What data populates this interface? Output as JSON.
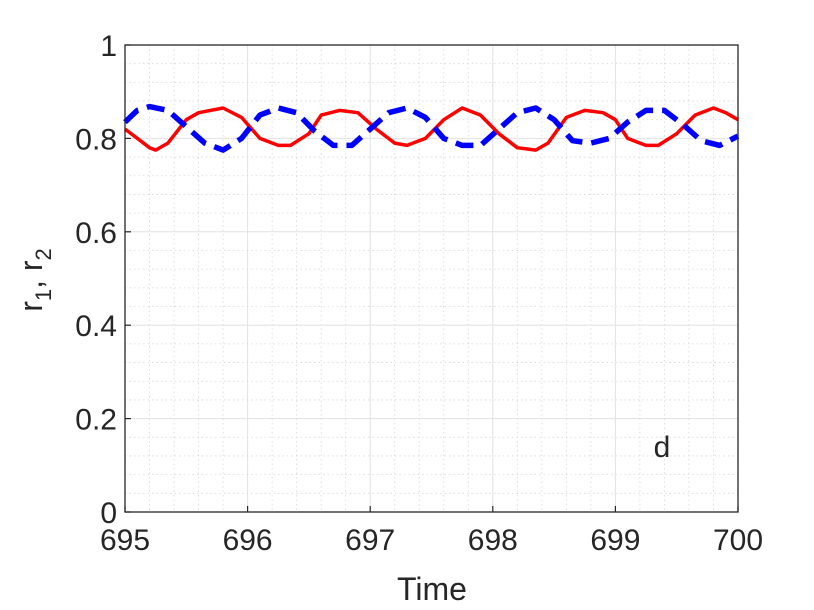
{
  "chart_data": {
    "type": "line",
    "title": "",
    "xlabel": "Time",
    "ylabel": "r₁, r₂",
    "ylabel_parts": {
      "r": "r",
      "sub1": "1",
      "sep": ", ",
      "sub2": "2"
    },
    "xlim": [
      695,
      700
    ],
    "ylim": [
      0,
      1
    ],
    "xticks": [
      695,
      696,
      697,
      698,
      699,
      700
    ],
    "xtick_labels": [
      "695",
      "696",
      "697",
      "698",
      "699",
      "700"
    ],
    "yticks": [
      0,
      0.2,
      0.4,
      0.6,
      0.8,
      1
    ],
    "ytick_labels": [
      "0",
      "0.2",
      "0.4",
      "0.6",
      "0.8",
      "1"
    ],
    "grid": true,
    "minor_grid": true,
    "annotation": "d",
    "series": [
      {
        "color": "#ff0000",
        "style": "solid",
        "x": [
          695.0,
          695.1,
          695.2,
          695.25,
          695.35,
          695.5,
          695.6,
          695.8,
          695.95,
          696.1,
          696.25,
          696.35,
          696.5,
          696.6,
          696.75,
          696.9,
          697.05,
          697.2,
          697.3,
          697.45,
          697.6,
          697.75,
          697.9,
          698.05,
          698.2,
          698.35,
          698.45,
          698.6,
          698.75,
          698.9,
          699.0,
          699.1,
          699.25,
          699.35,
          699.5,
          699.65,
          699.8,
          699.9,
          700.0
        ],
        "y": [
          0.82,
          0.8,
          0.78,
          0.775,
          0.79,
          0.84,
          0.855,
          0.865,
          0.845,
          0.8,
          0.785,
          0.785,
          0.81,
          0.85,
          0.86,
          0.855,
          0.82,
          0.79,
          0.785,
          0.8,
          0.84,
          0.865,
          0.85,
          0.81,
          0.78,
          0.775,
          0.79,
          0.845,
          0.86,
          0.855,
          0.84,
          0.8,
          0.785,
          0.785,
          0.81,
          0.85,
          0.865,
          0.855,
          0.84
        ]
      },
      {
        "color": "#0000ff",
        "style": "dashed",
        "x": [
          695.0,
          695.1,
          695.2,
          695.35,
          695.5,
          695.65,
          695.8,
          695.95,
          696.1,
          696.25,
          696.4,
          696.55,
          696.7,
          696.85,
          697.0,
          697.15,
          697.3,
          697.45,
          697.6,
          697.75,
          697.9,
          698.05,
          698.2,
          698.35,
          698.5,
          698.65,
          698.8,
          698.95,
          699.1,
          699.25,
          699.4,
          699.55,
          699.7,
          699.85,
          700.0
        ],
        "y": [
          0.835,
          0.86,
          0.868,
          0.86,
          0.825,
          0.79,
          0.775,
          0.8,
          0.85,
          0.865,
          0.855,
          0.815,
          0.785,
          0.785,
          0.82,
          0.855,
          0.865,
          0.845,
          0.8,
          0.785,
          0.785,
          0.82,
          0.855,
          0.865,
          0.84,
          0.795,
          0.79,
          0.8,
          0.835,
          0.86,
          0.86,
          0.83,
          0.795,
          0.785,
          0.805
        ]
      }
    ]
  }
}
